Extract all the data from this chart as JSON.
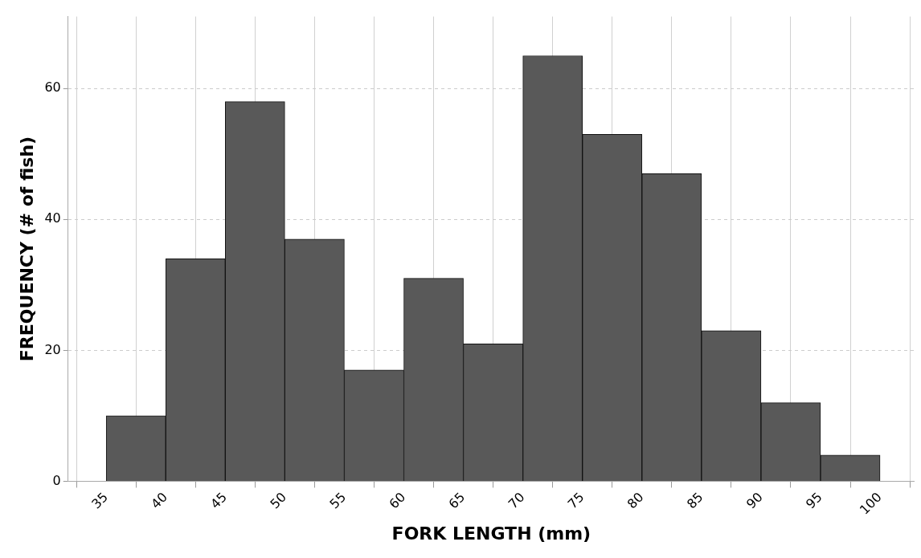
{
  "chart_data": {
    "type": "histogram",
    "xlabel": "FORK LENGTH (mm)",
    "ylabel": "FREQUENCY (# of fish)",
    "bins": [
      35,
      40,
      45,
      50,
      55,
      60,
      65,
      70,
      75,
      80,
      85,
      90,
      95,
      100
    ],
    "values": [
      10,
      34,
      58,
      37,
      17,
      31,
      21,
      65,
      53,
      47,
      23,
      12,
      4
    ],
    "color": "#595959",
    "xlim": [
      31.8,
      102.9
    ],
    "xticks": [
      35,
      40,
      45,
      50,
      55,
      60,
      65,
      70,
      75,
      80,
      85,
      90,
      95,
      100
    ],
    "ylim": [
      0,
      71
    ],
    "yticks": [
      0,
      20,
      40,
      60
    ],
    "grid": true,
    "legend": false
  }
}
